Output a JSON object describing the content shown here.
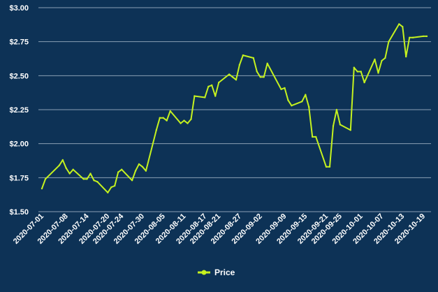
{
  "chart_data": {
    "type": "line",
    "series": [
      {
        "name": "Price",
        "x": [
          "2020-07-01",
          "2020-07-02",
          "2020-07-06",
          "2020-07-07",
          "2020-07-08",
          "2020-07-09",
          "2020-07-10",
          "2020-07-13",
          "2020-07-14",
          "2020-07-15",
          "2020-07-16",
          "2020-07-17",
          "2020-07-20",
          "2020-07-21",
          "2020-07-22",
          "2020-07-23",
          "2020-07-24",
          "2020-07-27",
          "2020-07-28",
          "2020-07-29",
          "2020-07-30",
          "2020-07-31",
          "2020-08-03",
          "2020-08-04",
          "2020-08-05",
          "2020-08-06",
          "2020-08-07",
          "2020-08-10",
          "2020-08-11",
          "2020-08-12",
          "2020-08-13",
          "2020-08-14",
          "2020-08-17",
          "2020-08-18",
          "2020-08-19",
          "2020-08-20",
          "2020-08-21",
          "2020-08-24",
          "2020-08-25",
          "2020-08-26",
          "2020-08-27",
          "2020-08-28",
          "2020-08-31",
          "2020-09-01",
          "2020-09-02",
          "2020-09-03",
          "2020-09-04",
          "2020-09-08",
          "2020-09-09",
          "2020-09-10",
          "2020-09-11",
          "2020-09-14",
          "2020-09-15",
          "2020-09-16",
          "2020-09-17",
          "2020-09-18",
          "2020-09-21",
          "2020-09-22",
          "2020-09-23",
          "2020-09-24",
          "2020-09-25",
          "2020-09-28",
          "2020-09-29",
          "2020-09-30",
          "2020-10-01",
          "2020-10-02",
          "2020-10-05",
          "2020-10-06",
          "2020-10-07",
          "2020-10-08",
          "2020-10-09",
          "2020-10-12",
          "2020-10-13",
          "2020-10-14",
          "2020-10-15",
          "2020-10-16",
          "2020-10-19",
          "2020-10-20"
        ],
        "values": [
          1.67,
          1.74,
          1.84,
          1.88,
          1.82,
          1.78,
          1.81,
          1.74,
          1.74,
          1.78,
          1.73,
          1.72,
          1.64,
          1.68,
          1.69,
          1.79,
          1.81,
          1.73,
          1.8,
          1.85,
          1.83,
          1.8,
          2.1,
          2.19,
          2.19,
          2.17,
          2.24,
          2.15,
          2.17,
          2.15,
          2.18,
          2.35,
          2.34,
          2.42,
          2.43,
          2.35,
          2.45,
          2.51,
          2.49,
          2.47,
          2.58,
          2.65,
          2.63,
          2.53,
          2.49,
          2.49,
          2.59,
          2.4,
          2.41,
          2.32,
          2.28,
          2.31,
          2.36,
          2.27,
          2.05,
          2.05,
          1.83,
          1.83,
          2.13,
          2.25,
          2.14,
          2.1,
          2.56,
          2.53,
          2.53,
          2.45,
          2.62,
          2.52,
          2.61,
          2.63,
          2.75,
          2.88,
          2.86,
          2.64,
          2.78,
          2.78,
          2.79,
          2.79
        ],
        "color": "#c5f21f"
      }
    ],
    "x_tick_labels": [
      "2020-07-01",
      "2020-07-08",
      "2020-07-14",
      "2020-07-20",
      "2020-07-24",
      "2020-07-30",
      "2020-08-05",
      "2020-08-11",
      "2020-08-17",
      "2020-08-21",
      "2020-08-27",
      "2020-09-02",
      "2020-09-09",
      "2020-09-15",
      "2020-09-21",
      "2020-09-25",
      "2020-10-01",
      "2020-10-07",
      "2020-10-13",
      "2020-10-19"
    ],
    "y_tick_labels": [
      "$3.00",
      "$2.75",
      "$2.50",
      "$2.25",
      "$2.00",
      "$1.75",
      "$1.50"
    ],
    "ylim": [
      1.5,
      3.0
    ],
    "grid": "horizontal",
    "legend": {
      "placement": "bottom-center",
      "label": "Price"
    },
    "background_color": "#0d3256",
    "grid_color": "#8aa0b5",
    "text_color": "#ffffff"
  }
}
